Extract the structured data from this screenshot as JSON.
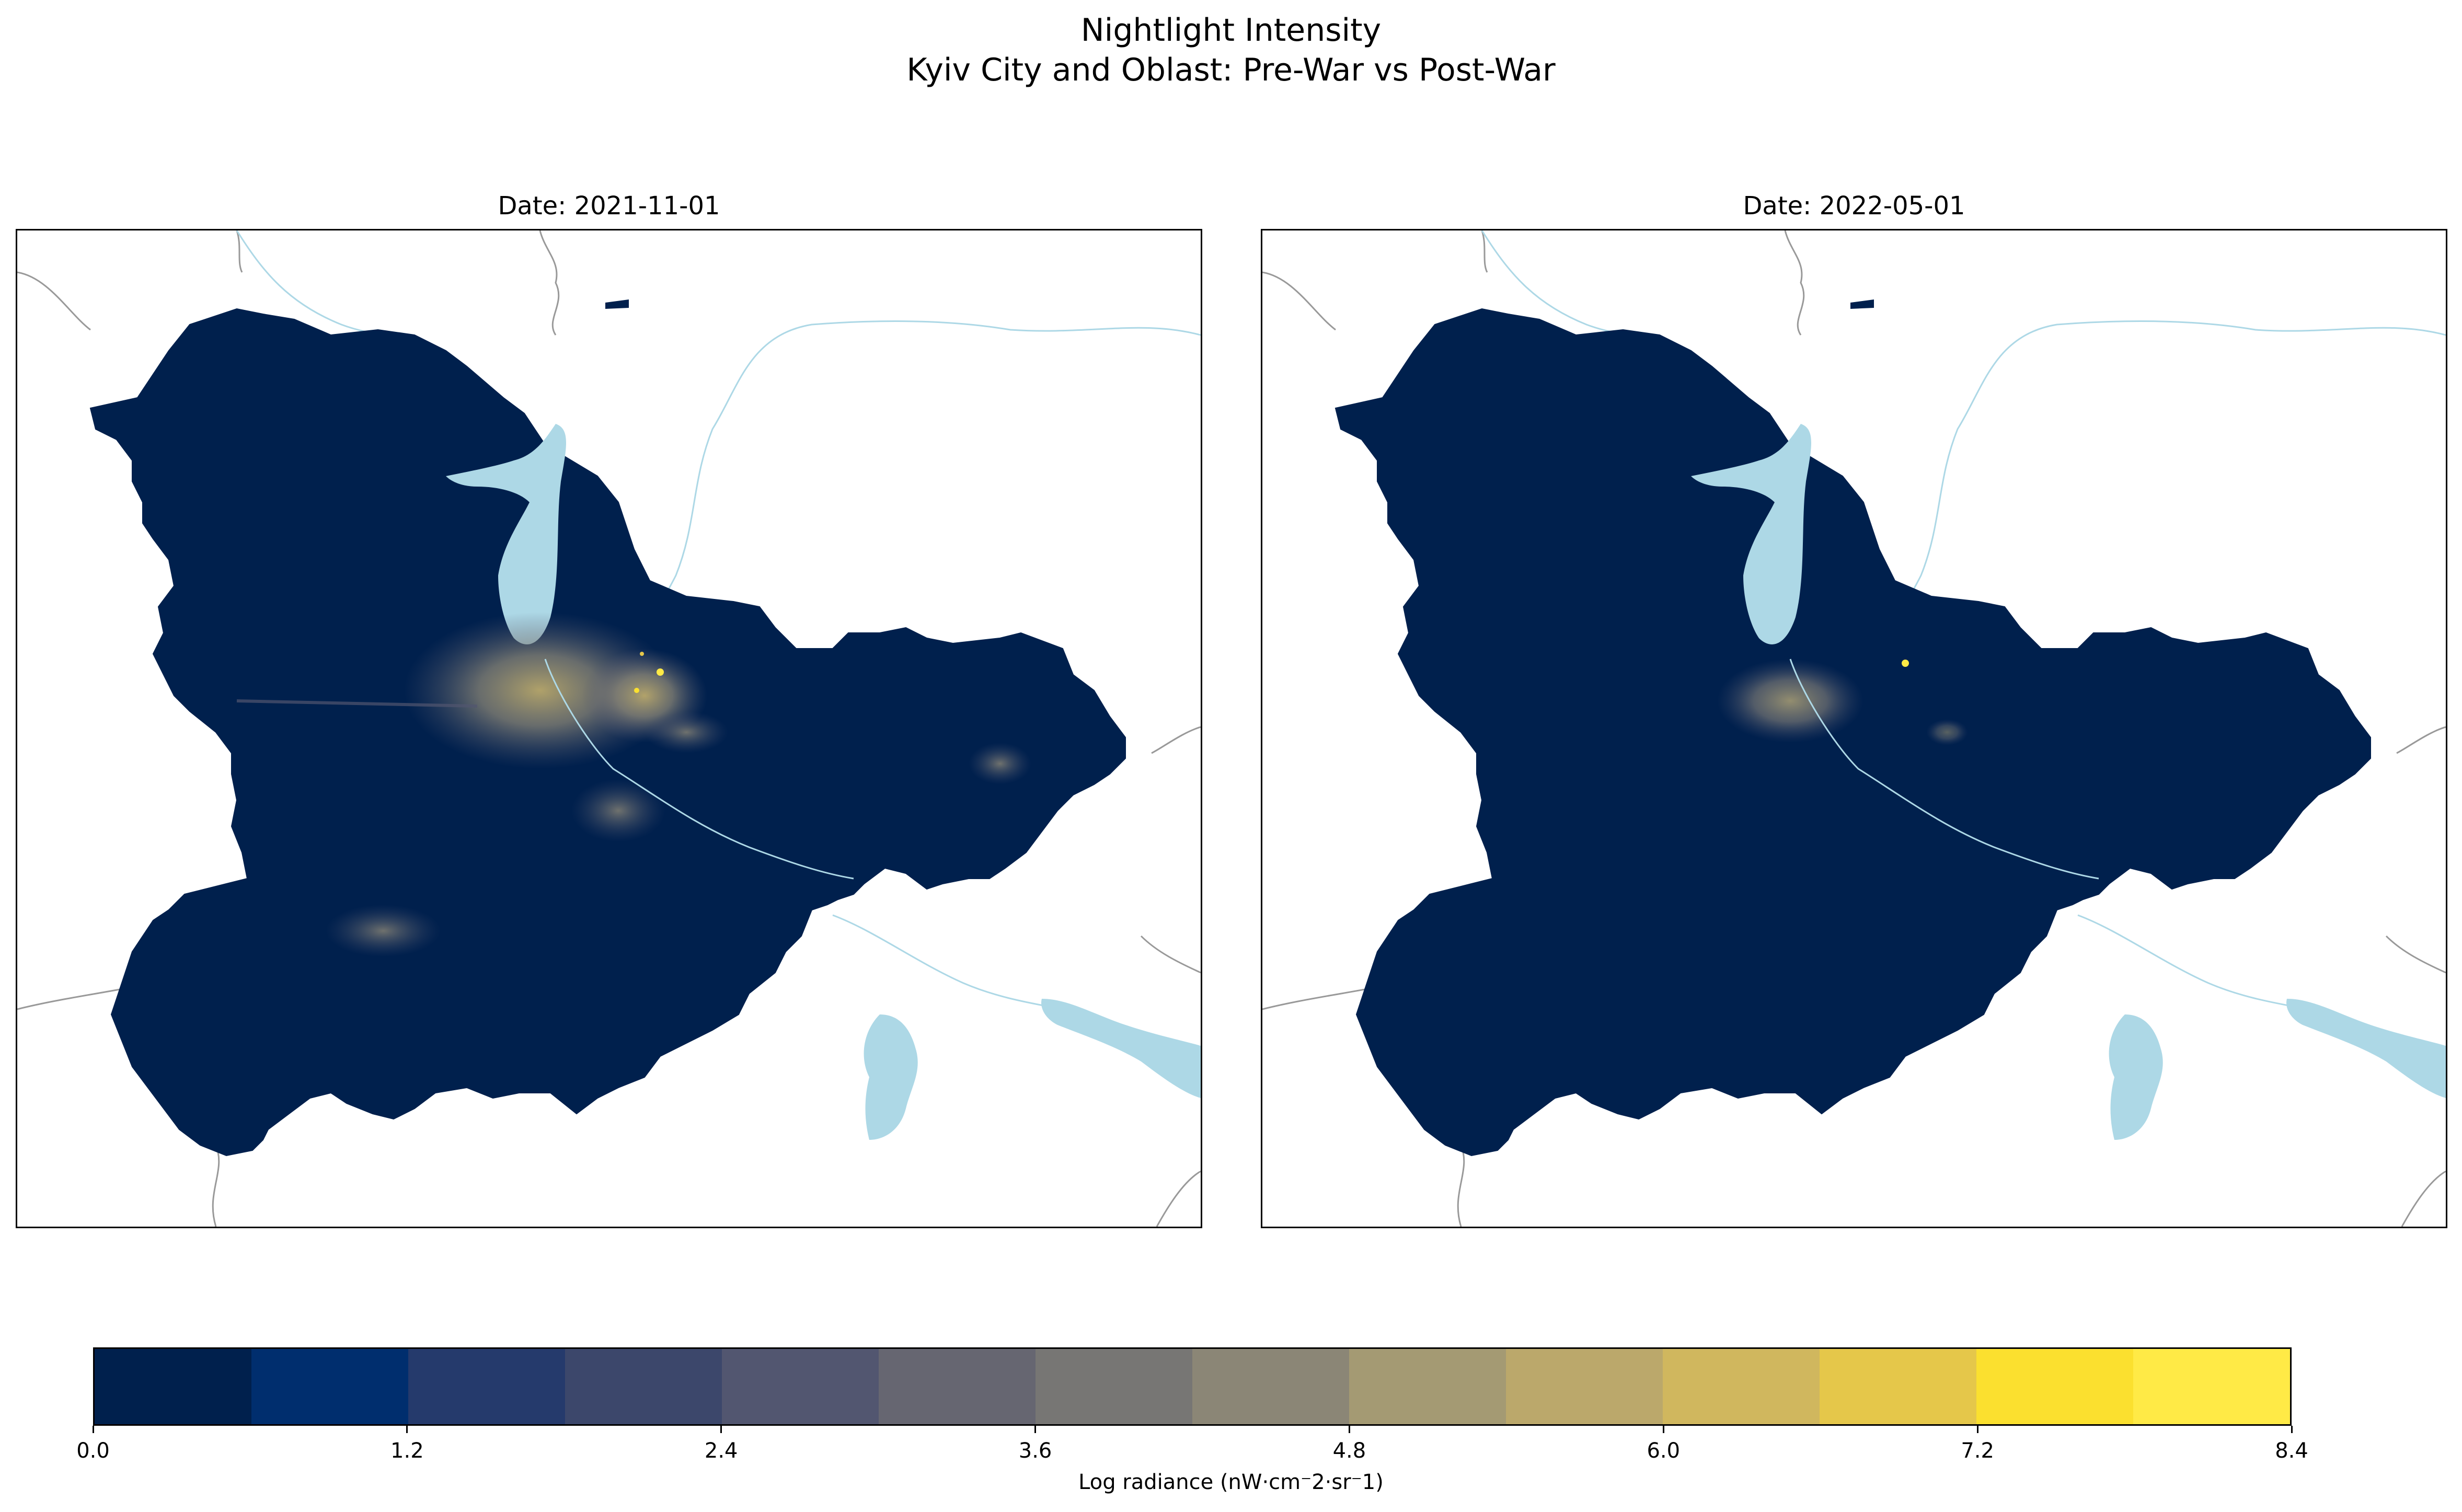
{
  "figure": {
    "title_line1": "Nightlight Intensity",
    "title_line2": "Kyiv City and Oblast: Pre-War vs Post-War"
  },
  "panels": [
    {
      "title": "Date: 2021-11-01",
      "period": "pre-war"
    },
    {
      "title": "Date: 2022-05-01",
      "period": "post-war"
    }
  ],
  "colorbar": {
    "label": "Log radiance (nW·cm⁻2·sr⁻1)",
    "min": 0.0,
    "max": 8.4,
    "ticks": [
      "0.0",
      "1.2",
      "2.4",
      "3.6",
      "4.8",
      "6.0",
      "7.2",
      "8.4"
    ],
    "colors": [
      "#00204d",
      "#002e6e",
      "#253a6c",
      "#3c476b",
      "#525670",
      "#666671",
      "#777674",
      "#8b8676",
      "#a49a73",
      "#bba86b",
      "#d0b75e",
      "#e5c74a",
      "#fbe02f",
      "#ffea46"
    ]
  },
  "colors": {
    "oblast_fill": "#00204d",
    "water": "#add8e6",
    "river": "#add8e6",
    "border": "#888888",
    "city_glow": "#8b8676",
    "hotspot": "#ffea46"
  }
}
